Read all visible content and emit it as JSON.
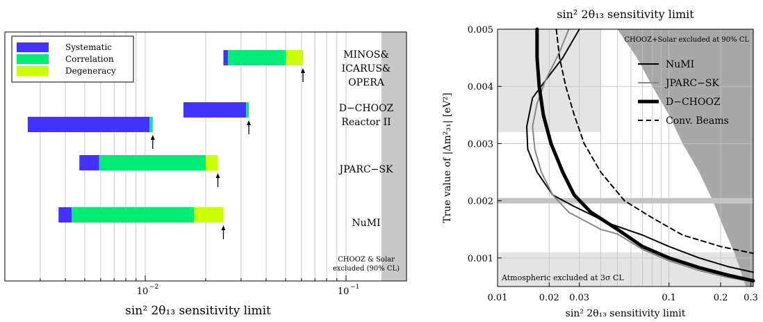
{
  "chart_data": [
    {
      "type": "bar",
      "orientation": "horizontal-floating-stacked",
      "xscale": "log",
      "xlim": [
        0.002,
        0.2
      ],
      "xlabel": "sin² 2θ₁₃ sensitivity limit",
      "xtick_labels": [
        {
          "value": 0.01,
          "label": "10",
          "exp": "−2"
        },
        {
          "value": 0.1,
          "label": "10",
          "exp": "−1"
        }
      ],
      "legend": {
        "placement": "top-left",
        "entries": [
          {
            "name": "Systematic",
            "color": "#4433ff"
          },
          {
            "name": "Correlation",
            "color": "#00ee77"
          },
          {
            "name": "Degeneracy",
            "color": "#ccff00"
          }
        ]
      },
      "shaded_region": {
        "from": 0.15,
        "to": 0.2,
        "color": "#c8c8c8"
      },
      "experiments": [
        {
          "label_lines": [
            "MINOS&",
            "ICARUS&",
            "OPERA"
          ],
          "start": 0.0245,
          "systematic_end": 0.0258,
          "correlation_end": 0.05,
          "degeneracy_end": 0.061,
          "arrow": 0.061
        },
        {
          "label_lines": [
            "D−CHOOZ",
            "Reactor II"
          ],
          "start": 0.0155,
          "systematic_end": 0.0318,
          "correlation_end": 0.0328,
          "degeneracy_end": 0.0328,
          "arrow": 0.0328
        },
        {
          "label_lines": [],
          "start": 0.0026,
          "systematic_end": 0.0105,
          "correlation_end": 0.0109,
          "degeneracy_end": 0.0109,
          "arrow": 0.0109
        },
        {
          "label_lines": [
            "JPARC−SK"
          ],
          "start": 0.0047,
          "systematic_end": 0.0059,
          "correlation_end": 0.02,
          "degeneracy_end": 0.023,
          "arrow": 0.023
        },
        {
          "label_lines": [
            "NuMI"
          ],
          "start": 0.0037,
          "systematic_end": 0.0043,
          "correlation_end": 0.0175,
          "degeneracy_end": 0.0245,
          "arrow": 0.0245
        }
      ],
      "footnote_lines": [
        "CHOOZ & Solar",
        "excluded (90% CL)"
      ]
    },
    {
      "type": "line",
      "title": "sin² 2θ₁₃ sensitivity limit",
      "xlabel": "sin² 2θ₁₃ sensitivity limit",
      "ylabel": "True value of |Δm²₃₁| [eV²]",
      "xscale": "log",
      "xlim": [
        0.01,
        0.31
      ],
      "ylim": [
        0.0005,
        0.005
      ],
      "xticks": [
        {
          "value": 0.01,
          "label": "0.01"
        },
        {
          "value": 0.02,
          "label": "0.02"
        },
        {
          "value": 0.03,
          "label": "0.03"
        },
        {
          "value": 0.1,
          "label": "0.1"
        },
        {
          "value": 0.2,
          "label": "0.2"
        },
        {
          "value": 0.3,
          "label": "0.3"
        }
      ],
      "yticks": [
        {
          "value": 0.001,
          "label": "0.001"
        },
        {
          "value": 0.002,
          "label": "0.002"
        },
        {
          "value": 0.003,
          "label": "0.003"
        },
        {
          "value": 0.004,
          "label": "0.004"
        },
        {
          "value": 0.005,
          "label": "0.005"
        }
      ],
      "grid": true,
      "legend": {
        "placement": "top-right"
      },
      "regions": [
        {
          "label": "CHOOZ+Solar excluded at 90% CL",
          "color": "#a8a8a8"
        },
        {
          "label": "Atmospheric excluded at 3σ CL",
          "color": "#e4e4e4"
        }
      ],
      "reference_line": {
        "y": 0.002,
        "color": "#c4c4c4"
      },
      "series": [
        {
          "name": "NuMI",
          "color": "#000000",
          "width": 2,
          "dash": "",
          "points": [
            [
              0.03,
              0.005
            ],
            [
              0.024,
              0.0045
            ],
            [
              0.019,
              0.0041
            ],
            [
              0.016,
              0.0038
            ],
            [
              0.0148,
              0.0033
            ],
            [
              0.015,
              0.0029
            ],
            [
              0.017,
              0.0025
            ],
            [
              0.021,
              0.0021
            ],
            [
              0.028,
              0.0019
            ],
            [
              0.045,
              0.0016
            ],
            [
              0.07,
              0.0014
            ],
            [
              0.1,
              0.0012
            ],
            [
              0.15,
              0.001
            ],
            [
              0.22,
              0.00085
            ],
            [
              0.31,
              0.00075
            ]
          ]
        },
        {
          "name": "JPARC−SK",
          "color": "#888888",
          "width": 2,
          "dash": "",
          "points": [
            [
              0.026,
              0.005
            ],
            [
              0.023,
              0.0046
            ],
            [
              0.019,
              0.0041
            ],
            [
              0.017,
              0.0037
            ],
            [
              0.016,
              0.0033
            ],
            [
              0.0165,
              0.0029
            ],
            [
              0.018,
              0.0025
            ],
            [
              0.021,
              0.0021
            ],
            [
              0.026,
              0.0018
            ],
            [
              0.04,
              0.0015
            ],
            [
              0.05,
              0.00142
            ],
            [
              0.07,
              0.00115
            ],
            [
              0.1,
              0.00095
            ],
            [
              0.15,
              0.00078
            ],
            [
              0.22,
              0.00066
            ],
            [
              0.31,
              0.00058
            ]
          ]
        },
        {
          "name": "D−CHOOZ",
          "color": "#000000",
          "width": 5,
          "dash": "",
          "points": [
            [
              0.017,
              0.005
            ],
            [
              0.017,
              0.0045
            ],
            [
              0.0175,
              0.004
            ],
            [
              0.0185,
              0.0035
            ],
            [
              0.0205,
              0.003
            ],
            [
              0.024,
              0.0025
            ],
            [
              0.028,
              0.0021
            ],
            [
              0.035,
              0.0018
            ],
            [
              0.05,
              0.0015
            ],
            [
              0.07,
              0.0012
            ],
            [
              0.1,
              0.001
            ],
            [
              0.15,
              0.00083
            ],
            [
              0.22,
              0.0007
            ],
            [
              0.31,
              0.0006
            ]
          ]
        },
        {
          "name": "Conv. Beams",
          "color": "#000000",
          "width": 2,
          "dash": "7,5",
          "points": [
            [
              0.022,
              0.005
            ],
            [
              0.023,
              0.0045
            ],
            [
              0.025,
              0.004
            ],
            [
              0.028,
              0.0035
            ],
            [
              0.032,
              0.003
            ],
            [
              0.04,
              0.0025
            ],
            [
              0.055,
              0.002
            ],
            [
              0.08,
              0.0017
            ],
            [
              0.12,
              0.0014
            ],
            [
              0.2,
              0.0012
            ],
            [
              0.31,
              0.00108
            ]
          ]
        }
      ]
    }
  ]
}
